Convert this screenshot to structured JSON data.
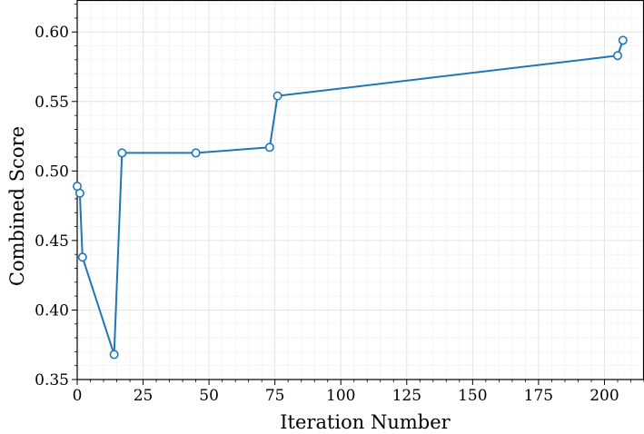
{
  "chart_data": {
    "type": "line",
    "title": "",
    "xlabel": "Iteration Number",
    "ylabel": "Combined Score",
    "xlim": [
      0,
      215
    ],
    "ylim": [
      0.35,
      0.623
    ],
    "xticks": [
      0,
      25,
      50,
      75,
      100,
      125,
      150,
      175,
      200
    ],
    "xtick_labels": [
      "0",
      "25",
      "50",
      "75",
      "100",
      "125",
      "150",
      "175",
      "200"
    ],
    "yticks": [
      0.35,
      0.4,
      0.45,
      0.5,
      0.55,
      0.6
    ],
    "ytick_labels": [
      "0.35",
      "0.40",
      "0.45",
      "0.50",
      "0.55",
      "0.60"
    ],
    "grid": true,
    "legend": "none",
    "series": [
      {
        "color": "#1f77b4",
        "marker": "open-circle",
        "x": [
          0,
          1,
          2,
          14,
          17,
          45,
          73,
          76,
          205,
          207
        ],
        "y": [
          0.489,
          0.484,
          0.438,
          0.368,
          0.513,
          0.513,
          0.517,
          0.554,
          0.583,
          0.594
        ]
      }
    ]
  }
}
